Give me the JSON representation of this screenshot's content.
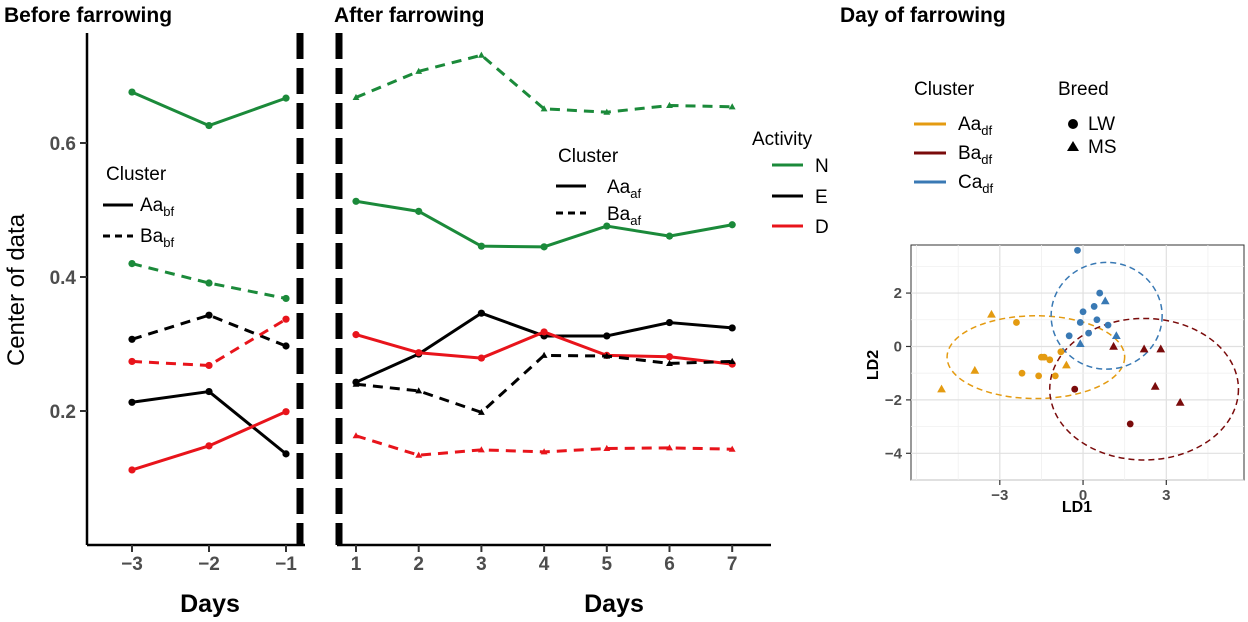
{
  "colors": {
    "N": "#1b8a3a",
    "E": "#000000",
    "D": "#e8141b",
    "Aa_df": "#e49b11",
    "Ba_df": "#7a0b0b",
    "Ca_df": "#3979b4",
    "tick": "#4d4d4d"
  },
  "chart_data": [
    {
      "type": "line",
      "title": "Before farrowing",
      "xlabel": "Days",
      "ylabel": "Center of data",
      "x": [
        -3,
        -2,
        -1
      ],
      "xtick_labels": [
        "−3",
        "−2",
        "−1"
      ],
      "yticks": [
        0.2,
        0.4,
        0.6
      ],
      "ytick_labels": [
        "0.2",
        "0.4",
        "0.6"
      ],
      "ylim": [
        0.0,
        0.78
      ],
      "series": [
        {
          "name": "N",
          "cluster": "Aa_bf",
          "dash": "solid",
          "values": [
            0.676,
            0.626,
            0.667
          ]
        },
        {
          "name": "E",
          "cluster": "Aa_bf",
          "dash": "solid",
          "values": [
            0.213,
            0.229,
            0.136
          ]
        },
        {
          "name": "D",
          "cluster": "Aa_bf",
          "dash": "solid",
          "values": [
            0.112,
            0.148,
            0.199
          ]
        },
        {
          "name": "N",
          "cluster": "Ba_bf",
          "dash": "dashed",
          "values": [
            0.42,
            0.391,
            0.368
          ]
        },
        {
          "name": "E",
          "cluster": "Ba_bf",
          "dash": "dashed",
          "values": [
            0.307,
            0.343,
            0.297
          ]
        },
        {
          "name": "D",
          "cluster": "Ba_bf",
          "dash": "dashed",
          "values": [
            0.274,
            0.268,
            0.337
          ]
        }
      ],
      "legend": {
        "title": "Cluster",
        "items": [
          {
            "base": "Aa",
            "sub": "bf"
          },
          {
            "base": "Ba",
            "sub": "bf"
          }
        ]
      }
    },
    {
      "type": "line",
      "title": "After farrowing",
      "xlabel": "Days",
      "x": [
        1,
        2,
        3,
        4,
        5,
        6,
        7
      ],
      "xtick_labels": [
        "1",
        "2",
        "3",
        "4",
        "5",
        "6",
        "7"
      ],
      "ylim": [
        0.0,
        0.78
      ],
      "series": [
        {
          "name": "N",
          "cluster": "Aa_af",
          "dash": "solid",
          "values": [
            0.513,
            0.498,
            0.446,
            0.445,
            0.476,
            0.461,
            0.478
          ]
        },
        {
          "name": "E",
          "cluster": "Aa_af",
          "dash": "solid",
          "values": [
            0.243,
            0.285,
            0.346,
            0.312,
            0.312,
            0.332,
            0.324
          ]
        },
        {
          "name": "D",
          "cluster": "Aa_af",
          "dash": "solid",
          "values": [
            0.314,
            0.287,
            0.279,
            0.318,
            0.283,
            0.281,
            0.27
          ]
        },
        {
          "name": "N",
          "cluster": "Ba_af",
          "dash": "dashed",
          "values": [
            0.668,
            0.707,
            0.731,
            0.651,
            0.646,
            0.656,
            0.654
          ]
        },
        {
          "name": "E",
          "cluster": "Ba_af",
          "dash": "dashed",
          "values": [
            0.24,
            0.23,
            0.198,
            0.283,
            0.282,
            0.271,
            0.274
          ]
        },
        {
          "name": "D",
          "cluster": "Ba_af",
          "dash": "dashed",
          "values": [
            0.163,
            0.134,
            0.142,
            0.139,
            0.144,
            0.145,
            0.143
          ]
        }
      ],
      "legend": {
        "title": "Cluster",
        "items": [
          {
            "base": "Aa",
            "sub": "af"
          },
          {
            "base": "Ba",
            "sub": "af"
          }
        ]
      },
      "activity_legend": {
        "title": "Activity",
        "items": [
          "N",
          "E",
          "D"
        ]
      }
    },
    {
      "type": "scatter",
      "title": "Day of farrowing",
      "xlabel": "LD1",
      "ylabel": "LD2",
      "xlim": [
        -6.2,
        5.8
      ],
      "ylim": [
        -5.0,
        3.8
      ],
      "xticks": [
        -3,
        0,
        3
      ],
      "xtick_labels": [
        "−3",
        "0",
        "3"
      ],
      "yticks": [
        -4,
        -2,
        0,
        2
      ],
      "ytick_labels": [
        "−4",
        "−2",
        "0",
        "2"
      ],
      "cluster_legend": {
        "title": "Cluster",
        "items": [
          {
            "key": "Aa_df",
            "base": "Aa",
            "sub": "df"
          },
          {
            "key": "Ba_df",
            "base": "Ba",
            "sub": "df"
          },
          {
            "key": "Ca_df",
            "base": "Ca",
            "sub": "df"
          }
        ]
      },
      "breed_legend": {
        "title": "Breed",
        "items": [
          {
            "key": "LW",
            "label": "LW"
          },
          {
            "key": "MS",
            "label": "MS"
          }
        ]
      },
      "ellipses": [
        {
          "cluster": "Aa_df",
          "cx": -1.7,
          "cy": -0.4,
          "rx": 3.2,
          "ry": 1.55
        },
        {
          "cluster": "Ba_df",
          "cx": 2.2,
          "cy": -1.6,
          "rx": 3.4,
          "ry": 2.65
        },
        {
          "cluster": "Ca_df",
          "cx": 0.85,
          "cy": 1.15,
          "rx": 2.0,
          "ry": 2.0
        }
      ],
      "points": [
        {
          "cluster": "Aa_df",
          "breed": "LW",
          "x": -2.4,
          "y": 0.9
        },
        {
          "cluster": "Aa_df",
          "breed": "LW",
          "x": -1.5,
          "y": -0.4
        },
        {
          "cluster": "Aa_df",
          "breed": "LW",
          "x": -1.2,
          "y": -0.5
        },
        {
          "cluster": "Aa_df",
          "breed": "LW",
          "x": -2.2,
          "y": -1.0
        },
        {
          "cluster": "Aa_df",
          "breed": "LW",
          "x": -1.6,
          "y": -1.1
        },
        {
          "cluster": "Aa_df",
          "breed": "LW",
          "x": -1.0,
          "y": -1.1
        },
        {
          "cluster": "Aa_df",
          "breed": "LW",
          "x": -1.4,
          "y": -0.4
        },
        {
          "cluster": "Aa_df",
          "breed": "LW",
          "x": -0.8,
          "y": -0.2
        },
        {
          "cluster": "Aa_df",
          "breed": "MS",
          "x": -5.1,
          "y": -1.6
        },
        {
          "cluster": "Aa_df",
          "breed": "MS",
          "x": -3.9,
          "y": -0.9
        },
        {
          "cluster": "Aa_df",
          "breed": "MS",
          "x": -3.3,
          "y": 1.2
        },
        {
          "cluster": "Aa_df",
          "breed": "MS",
          "x": -0.6,
          "y": -0.7
        },
        {
          "cluster": "Ba_df",
          "breed": "LW",
          "x": -0.3,
          "y": -1.6
        },
        {
          "cluster": "Ba_df",
          "breed": "LW",
          "x": 1.7,
          "y": -2.9
        },
        {
          "cluster": "Ba_df",
          "breed": "MS",
          "x": 1.1,
          "y": 0.0
        },
        {
          "cluster": "Ba_df",
          "breed": "MS",
          "x": 2.2,
          "y": -0.1
        },
        {
          "cluster": "Ba_df",
          "breed": "MS",
          "x": 2.8,
          "y": -0.1
        },
        {
          "cluster": "Ba_df",
          "breed": "MS",
          "x": 2.6,
          "y": -1.5
        },
        {
          "cluster": "Ba_df",
          "breed": "MS",
          "x": 3.5,
          "y": -2.1
        },
        {
          "cluster": "Ca_df",
          "breed": "LW",
          "x": -0.2,
          "y": 3.6
        },
        {
          "cluster": "Ca_df",
          "breed": "LW",
          "x": 0.6,
          "y": 2.0
        },
        {
          "cluster": "Ca_df",
          "breed": "LW",
          "x": 0.4,
          "y": 1.5
        },
        {
          "cluster": "Ca_df",
          "breed": "LW",
          "x": 0.0,
          "y": 1.3
        },
        {
          "cluster": "Ca_df",
          "breed": "LW",
          "x": 0.5,
          "y": 1.0
        },
        {
          "cluster": "Ca_df",
          "breed": "LW",
          "x": -0.1,
          "y": 0.9
        },
        {
          "cluster": "Ca_df",
          "breed": "LW",
          "x": 0.9,
          "y": 0.8
        },
        {
          "cluster": "Ca_df",
          "breed": "LW",
          "x": 0.2,
          "y": 0.5
        },
        {
          "cluster": "Ca_df",
          "breed": "LW",
          "x": -0.5,
          "y": 0.4
        },
        {
          "cluster": "Ca_df",
          "breed": "MS",
          "x": 0.8,
          "y": 1.7
        },
        {
          "cluster": "Ca_df",
          "breed": "MS",
          "x": 1.2,
          "y": 0.4
        },
        {
          "cluster": "Ca_df",
          "breed": "MS",
          "x": -0.1,
          "y": 0.1
        }
      ]
    }
  ]
}
